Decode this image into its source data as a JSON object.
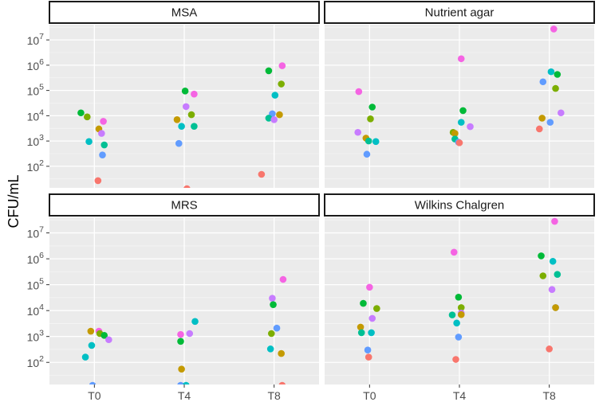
{
  "chart_data": {
    "type": "scatter",
    "title": "",
    "xlabel": "",
    "ylabel": "CFU/mL",
    "yscale": "log10",
    "ylim": [
      14,
      40000000
    ],
    "categories": [
      "T0",
      "T4",
      "T8"
    ],
    "ytick_labels": [
      {
        "base": "10",
        "exp": "2",
        "value": 100
      },
      {
        "base": "10",
        "exp": "3",
        "value": 1000
      },
      {
        "base": "10",
        "exp": "4",
        "value": 10000
      },
      {
        "base": "10",
        "exp": "5",
        "value": 100000
      },
      {
        "base": "10",
        "exp": "6",
        "value": 1000000
      },
      {
        "base": "10",
        "exp": "7",
        "value": 10000000
      }
    ],
    "panels": [
      {
        "name": "MSA",
        "points": [
          {
            "x": "T0",
            "offset": -0.15,
            "y": 13000,
            "color": "#00BA38"
          },
          {
            "x": "T0",
            "offset": -0.08,
            "y": 9000,
            "color": "#7CAE00"
          },
          {
            "x": "T0",
            "offset": 0.1,
            "y": 6000,
            "color": "#F564E3"
          },
          {
            "x": "T0",
            "offset": 0.05,
            "y": 3000,
            "color": "#C49A00"
          },
          {
            "x": "T0",
            "offset": 0.08,
            "y": 2000,
            "color": "#C77CFF"
          },
          {
            "x": "T0",
            "offset": -0.06,
            "y": 950,
            "color": "#00BFC4"
          },
          {
            "x": "T0",
            "offset": 0.11,
            "y": 700,
            "color": "#00C094"
          },
          {
            "x": "T0",
            "offset": 0.09,
            "y": 280,
            "color": "#619CFF"
          },
          {
            "x": "T0",
            "offset": 0.04,
            "y": 27,
            "color": "#F8766D"
          },
          {
            "x": "T4",
            "offset": 0.01,
            "y": 95000,
            "color": "#00BA38"
          },
          {
            "x": "T4",
            "offset": 0.11,
            "y": 72000,
            "color": "#F564E3"
          },
          {
            "x": "T4",
            "offset": 0.02,
            "y": 23000,
            "color": "#C77CFF"
          },
          {
            "x": "T4",
            "offset": 0.08,
            "y": 11000,
            "color": "#7CAE00"
          },
          {
            "x": "T4",
            "offset": -0.08,
            "y": 7000,
            "color": "#C49A00"
          },
          {
            "x": "T4",
            "offset": -0.03,
            "y": 3800,
            "color": "#00BFC4"
          },
          {
            "x": "T4",
            "offset": 0.11,
            "y": 3800,
            "color": "#00C094"
          },
          {
            "x": "T4",
            "offset": -0.06,
            "y": 800,
            "color": "#619CFF"
          },
          {
            "x": "T4",
            "offset": 0.03,
            "y": 13,
            "color": "#F8766D"
          },
          {
            "x": "T8",
            "offset": 0.09,
            "y": 950000,
            "color": "#F564E3"
          },
          {
            "x": "T8",
            "offset": -0.06,
            "y": 600000,
            "color": "#00BA38"
          },
          {
            "x": "T8",
            "offset": 0.08,
            "y": 180000,
            "color": "#7CAE00"
          },
          {
            "x": "T8",
            "offset": 0.01,
            "y": 65000,
            "color": "#00BFC4"
          },
          {
            "x": "T8",
            "offset": -0.02,
            "y": 12000,
            "color": "#619CFF"
          },
          {
            "x": "T8",
            "offset": 0.06,
            "y": 11000,
            "color": "#C49A00"
          },
          {
            "x": "T8",
            "offset": -0.06,
            "y": 8000,
            "color": "#00C094"
          },
          {
            "x": "T8",
            "offset": 0.0,
            "y": 7000,
            "color": "#C77CFF"
          },
          {
            "x": "T8",
            "offset": -0.14,
            "y": 48,
            "color": "#F8766D"
          }
        ]
      },
      {
        "name": "Nutrient agar",
        "points": [
          {
            "x": "T0",
            "offset": -0.12,
            "y": 90000,
            "color": "#F564E3"
          },
          {
            "x": "T0",
            "offset": 0.03,
            "y": 22000,
            "color": "#00BA38"
          },
          {
            "x": "T0",
            "offset": 0.01,
            "y": 7500,
            "color": "#7CAE00"
          },
          {
            "x": "T0",
            "offset": -0.13,
            "y": 2200,
            "color": "#C77CFF"
          },
          {
            "x": "T0",
            "offset": -0.04,
            "y": 1300,
            "color": "#C49A00"
          },
          {
            "x": "T0",
            "offset": -0.01,
            "y": 1000,
            "color": "#00C094"
          },
          {
            "x": "T0",
            "offset": 0.07,
            "y": 950,
            "color": "#00BFC4"
          },
          {
            "x": "T0",
            "offset": -0.03,
            "y": 300,
            "color": "#619CFF"
          },
          {
            "x": "T4",
            "offset": 0.02,
            "y": 1800000,
            "color": "#F564E3"
          },
          {
            "x": "T4",
            "offset": 0.04,
            "y": 16000,
            "color": "#00BA38"
          },
          {
            "x": "T4",
            "offset": 0.02,
            "y": 5500,
            "color": "#00BFC4"
          },
          {
            "x": "T4",
            "offset": 0.12,
            "y": 3700,
            "color": "#C77CFF"
          },
          {
            "x": "T4",
            "offset": -0.07,
            "y": 2200,
            "color": "#7CAE00"
          },
          {
            "x": "T4",
            "offset": -0.05,
            "y": 2000,
            "color": "#C49A00"
          },
          {
            "x": "T4",
            "offset": -0.05,
            "y": 1200,
            "color": "#00C094"
          },
          {
            "x": "T4",
            "offset": -0.01,
            "y": 900,
            "color": "#619CFF"
          },
          {
            "x": "T4",
            "offset": 0.0,
            "y": 850,
            "color": "#F8766D"
          },
          {
            "x": "T8",
            "offset": 0.05,
            "y": 27000000,
            "color": "#F564E3"
          },
          {
            "x": "T8",
            "offset": 0.02,
            "y": 550000,
            "color": "#00BFC4"
          },
          {
            "x": "T8",
            "offset": 0.09,
            "y": 430000,
            "color": "#00BA38"
          },
          {
            "x": "T8",
            "offset": -0.07,
            "y": 220000,
            "color": "#619CFF"
          },
          {
            "x": "T8",
            "offset": 0.07,
            "y": 120000,
            "color": "#7CAE00"
          },
          {
            "x": "T8",
            "offset": 0.13,
            "y": 13000,
            "color": "#C77CFF"
          },
          {
            "x": "T8",
            "offset": -0.08,
            "y": 8000,
            "color": "#C49A00"
          },
          {
            "x": "T8",
            "offset": 0.01,
            "y": 5500,
            "color": "#619CFF"
          },
          {
            "x": "T8",
            "offset": -0.11,
            "y": 3000,
            "color": "#F8766D"
          }
        ]
      },
      {
        "name": "MRS",
        "points": [
          {
            "x": "T0",
            "offset": -0.04,
            "y": 1600,
            "color": "#C49A00"
          },
          {
            "x": "T0",
            "offset": 0.05,
            "y": 1600,
            "color": "#F564E3"
          },
          {
            "x": "T0",
            "offset": 0.06,
            "y": 1300,
            "color": "#7CAE00"
          },
          {
            "x": "T0",
            "offset": 0.11,
            "y": 1100,
            "color": "#00BA38"
          },
          {
            "x": "T0",
            "offset": 0.16,
            "y": 750,
            "color": "#C77CFF"
          },
          {
            "x": "T0",
            "offset": -0.03,
            "y": 450,
            "color": "#00BFC4"
          },
          {
            "x": "T0",
            "offset": -0.1,
            "y": 160,
            "color": "#00BFC4"
          },
          {
            "x": "T0",
            "offset": -0.02,
            "y": 13,
            "color": "#619CFF"
          },
          {
            "x": "T4",
            "offset": -0.04,
            "y": 1200,
            "color": "#F564E3"
          },
          {
            "x": "T4",
            "offset": 0.06,
            "y": 1300,
            "color": "#C77CFF"
          },
          {
            "x": "T4",
            "offset": 0.12,
            "y": 3800,
            "color": "#00BFC4"
          },
          {
            "x": "T4",
            "offset": -0.04,
            "y": 650,
            "color": "#00BA38"
          },
          {
            "x": "T4",
            "offset": -0.03,
            "y": 55,
            "color": "#C49A00"
          },
          {
            "x": "T4",
            "offset": -0.04,
            "y": 13,
            "color": "#619CFF"
          },
          {
            "x": "T4",
            "offset": 0.02,
            "y": 13,
            "color": "#00BFC4"
          },
          {
            "x": "T8",
            "offset": 0.1,
            "y": 160000,
            "color": "#F564E3"
          },
          {
            "x": "T8",
            "offset": -0.02,
            "y": 30000,
            "color": "#C77CFF"
          },
          {
            "x": "T8",
            "offset": -0.01,
            "y": 17000,
            "color": "#00BA38"
          },
          {
            "x": "T8",
            "offset": 0.03,
            "y": 2100,
            "color": "#619CFF"
          },
          {
            "x": "T8",
            "offset": -0.03,
            "y": 1300,
            "color": "#7CAE00"
          },
          {
            "x": "T8",
            "offset": -0.04,
            "y": 330,
            "color": "#00BFC4"
          },
          {
            "x": "T8",
            "offset": 0.08,
            "y": 220,
            "color": "#C49A00"
          },
          {
            "x": "T8",
            "offset": 0.09,
            "y": 13,
            "color": "#F8766D"
          }
        ]
      },
      {
        "name": "Wilkins Chalgren",
        "points": [
          {
            "x": "T0",
            "offset": 0.0,
            "y": 80000,
            "color": "#F564E3"
          },
          {
            "x": "T0",
            "offset": -0.07,
            "y": 19000,
            "color": "#00BA38"
          },
          {
            "x": "T0",
            "offset": 0.08,
            "y": 12000,
            "color": "#7CAE00"
          },
          {
            "x": "T0",
            "offset": -0.1,
            "y": 2300,
            "color": "#C49A00"
          },
          {
            "x": "T0",
            "offset": -0.09,
            "y": 1400,
            "color": "#00C094"
          },
          {
            "x": "T0",
            "offset": 0.02,
            "y": 1400,
            "color": "#00BFC4"
          },
          {
            "x": "T0",
            "offset": 0.03,
            "y": 5000,
            "color": "#C77CFF"
          },
          {
            "x": "T0",
            "offset": -0.02,
            "y": 300,
            "color": "#619CFF"
          },
          {
            "x": "T0",
            "offset": -0.01,
            "y": 160,
            "color": "#F8766D"
          },
          {
            "x": "T4",
            "offset": -0.06,
            "y": 1800000,
            "color": "#F564E3"
          },
          {
            "x": "T4",
            "offset": -0.01,
            "y": 33000,
            "color": "#00BA38"
          },
          {
            "x": "T4",
            "offset": 0.02,
            "y": 13000,
            "color": "#7CAE00"
          },
          {
            "x": "T4",
            "offset": 0.02,
            "y": 8000,
            "color": "#C77CFF"
          },
          {
            "x": "T4",
            "offset": 0.02,
            "y": 7000,
            "color": "#C49A00"
          },
          {
            "x": "T4",
            "offset": -0.08,
            "y": 6800,
            "color": "#00C094"
          },
          {
            "x": "T4",
            "offset": -0.03,
            "y": 3300,
            "color": "#00BFC4"
          },
          {
            "x": "T4",
            "offset": -0.01,
            "y": 950,
            "color": "#619CFF"
          },
          {
            "x": "T4",
            "offset": -0.04,
            "y": 130,
            "color": "#F8766D"
          },
          {
            "x": "T8",
            "offset": 0.06,
            "y": 28000000,
            "color": "#F564E3"
          },
          {
            "x": "T8",
            "offset": -0.09,
            "y": 1300000,
            "color": "#00BA38"
          },
          {
            "x": "T8",
            "offset": 0.04,
            "y": 800000,
            "color": "#00BFC4"
          },
          {
            "x": "T8",
            "offset": 0.09,
            "y": 250000,
            "color": "#00C094"
          },
          {
            "x": "T8",
            "offset": -0.07,
            "y": 220000,
            "color": "#7CAE00"
          },
          {
            "x": "T8",
            "offset": 0.03,
            "y": 65000,
            "color": "#C77CFF"
          },
          {
            "x": "T8",
            "offset": 0.07,
            "y": 13000,
            "color": "#619CFF"
          },
          {
            "x": "T8",
            "offset": 0.07,
            "y": 13000,
            "color": "#C49A00"
          },
          {
            "x": "T8",
            "offset": 0.0,
            "y": 330,
            "color": "#F8766D"
          }
        ]
      }
    ]
  }
}
